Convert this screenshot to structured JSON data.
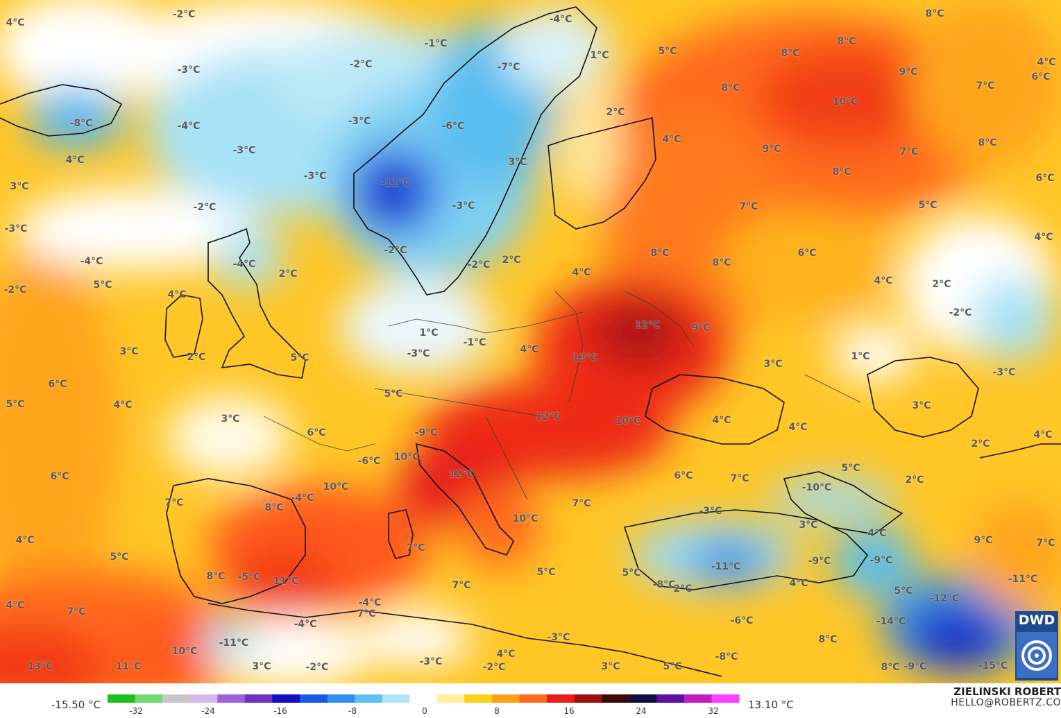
{
  "map": {
    "labels": [
      {
        "text": "4°C"
      },
      {
        "text": "-2°C"
      },
      {
        "text": "-4°C"
      },
      {
        "text": "8°C"
      },
      {
        "text": "-1°C"
      },
      {
        "text": "-3°C"
      },
      {
        "text": "-2°C"
      },
      {
        "text": "-7°C"
      },
      {
        "text": "1°C"
      },
      {
        "text": "5°C"
      },
      {
        "text": "8°C"
      },
      {
        "text": "8°C"
      },
      {
        "text": "9°C"
      },
      {
        "text": "7°C"
      },
      {
        "text": "6°C"
      },
      {
        "text": "4°C"
      },
      {
        "text": "-8°C"
      },
      {
        "text": "-4°C"
      },
      {
        "text": "-3°C"
      },
      {
        "text": "-6°C"
      },
      {
        "text": "8°C"
      },
      {
        "text": "10°C"
      },
      {
        "text": "2°C"
      },
      {
        "text": "4°C"
      },
      {
        "text": "-3°C"
      },
      {
        "text": "4°C"
      },
      {
        "text": "3°C"
      },
      {
        "text": "9°C"
      },
      {
        "text": "7°C"
      },
      {
        "text": "8°C"
      },
      {
        "text": "3°C"
      },
      {
        "text": "-3°C"
      },
      {
        "text": "-11°C"
      },
      {
        "text": "6°C"
      },
      {
        "text": "8°C"
      },
      {
        "text": "-2°C"
      },
      {
        "text": "-3°C"
      },
      {
        "text": "7°C"
      },
      {
        "text": "5°C"
      },
      {
        "text": "-3°C"
      },
      {
        "text": "-2°C"
      },
      {
        "text": "-2°C"
      },
      {
        "text": "-4°C"
      },
      {
        "text": "2°C"
      },
      {
        "text": "2°C"
      },
      {
        "text": "8°C"
      },
      {
        "text": "6°C"
      },
      {
        "text": "4°C"
      },
      {
        "text": "5°C"
      },
      {
        "text": "4°C"
      },
      {
        "text": "8°C"
      },
      {
        "text": "4°C"
      },
      {
        "text": "2°C"
      },
      {
        "text": "-2°C"
      },
      {
        "text": "-4°C"
      },
      {
        "text": "-2°C"
      },
      {
        "text": "1°C"
      },
      {
        "text": "12°C"
      },
      {
        "text": "9°C"
      },
      {
        "text": "-1°C"
      },
      {
        "text": "4°C"
      },
      {
        "text": "3°C"
      },
      {
        "text": "2°C"
      },
      {
        "text": "5°C"
      },
      {
        "text": "-3°C"
      },
      {
        "text": "13°C"
      },
      {
        "text": "3°C"
      },
      {
        "text": "1°C"
      },
      {
        "text": "-3°C"
      },
      {
        "text": "6°C"
      },
      {
        "text": "5°C"
      },
      {
        "text": "4°C"
      },
      {
        "text": "3°C"
      },
      {
        "text": "5°C"
      },
      {
        "text": "12°C"
      },
      {
        "text": "10°C"
      },
      {
        "text": "4°C"
      },
      {
        "text": "4°C"
      },
      {
        "text": "4°C"
      },
      {
        "text": "6°C"
      },
      {
        "text": "3°C"
      },
      {
        "text": "-9°C"
      },
      {
        "text": "2°C"
      },
      {
        "text": "4°C"
      },
      {
        "text": "5°C"
      },
      {
        "text": "-6°C"
      },
      {
        "text": "10°C"
      },
      {
        "text": "12°C"
      },
      {
        "text": "6°C"
      },
      {
        "text": "6°C"
      },
      {
        "text": "7°C"
      },
      {
        "text": "2°C"
      },
      {
        "text": "10°C"
      },
      {
        "text": "-10°C"
      },
      {
        "text": "-4°C"
      },
      {
        "text": "7°C"
      },
      {
        "text": "7°C"
      },
      {
        "text": "8°C"
      },
      {
        "text": "-3°C"
      },
      {
        "text": "10°C"
      },
      {
        "text": "3°C"
      },
      {
        "text": "4°C"
      },
      {
        "text": "7°C"
      },
      {
        "text": "4°C"
      },
      {
        "text": "9°C"
      },
      {
        "text": "5°C"
      },
      {
        "text": "7°C"
      },
      {
        "text": "-9°C"
      },
      {
        "text": "-9°C"
      },
      {
        "text": "-11°C"
      },
      {
        "text": "8°C"
      },
      {
        "text": "-5°C"
      },
      {
        "text": "11°C"
      },
      {
        "text": "7°C"
      },
      {
        "text": "5°C"
      },
      {
        "text": "5°C"
      },
      {
        "text": "-8°C"
      },
      {
        "text": "2°C"
      },
      {
        "text": "4°C"
      },
      {
        "text": "5°C"
      },
      {
        "text": "-12°C"
      },
      {
        "text": "-11°C"
      },
      {
        "text": "4°C"
      },
      {
        "text": "7°C"
      },
      {
        "text": "-4°C"
      },
      {
        "text": "-6°C"
      },
      {
        "text": "7°C"
      },
      {
        "text": "-4°C"
      },
      {
        "text": "-14°C"
      },
      {
        "text": "-3°C"
      },
      {
        "text": "8°C"
      },
      {
        "text": "-11°C"
      },
      {
        "text": "10°C"
      },
      {
        "text": "4°C"
      },
      {
        "text": "13°C"
      },
      {
        "text": "11°C"
      },
      {
        "text": "3°C"
      },
      {
        "text": "-2°C"
      },
      {
        "text": "-3°C"
      },
      {
        "text": "-2°C"
      },
      {
        "text": "3°C"
      },
      {
        "text": "5°C"
      },
      {
        "text": "-8°C"
      },
      {
        "text": "8°C"
      },
      {
        "text": "-9°C"
      },
      {
        "text": "-15°C"
      }
    ]
  },
  "legend": {
    "min_label": "-15.50 °C",
    "max_label": "13.10 °C",
    "ticks": [
      "-32",
      "-24",
      "-16",
      "-8",
      "0",
      "8",
      "16",
      "24",
      "32"
    ],
    "colors": [
      "#1fbf1f",
      "#6fd86f",
      "#c8c8c8",
      "#d9b8f0",
      "#a060e0",
      "#7030c0",
      "#1010c0",
      "#1a5ae0",
      "#2f8ff0",
      "#5fc0f5",
      "#b0e4f8",
      "#ffffff",
      "#fff0a0",
      "#ffd21a",
      "#ffa21a",
      "#ff6a1a",
      "#e61e1e",
      "#a01010",
      "#3c0a0a",
      "#101040",
      "#6010a0",
      "#c020c0",
      "#ff40ff"
    ]
  },
  "credits": {
    "author": "ZIELINSKI ROBERT",
    "email": "HELLO@ROBERTZ.CO",
    "logo_text": "DWD"
  }
}
